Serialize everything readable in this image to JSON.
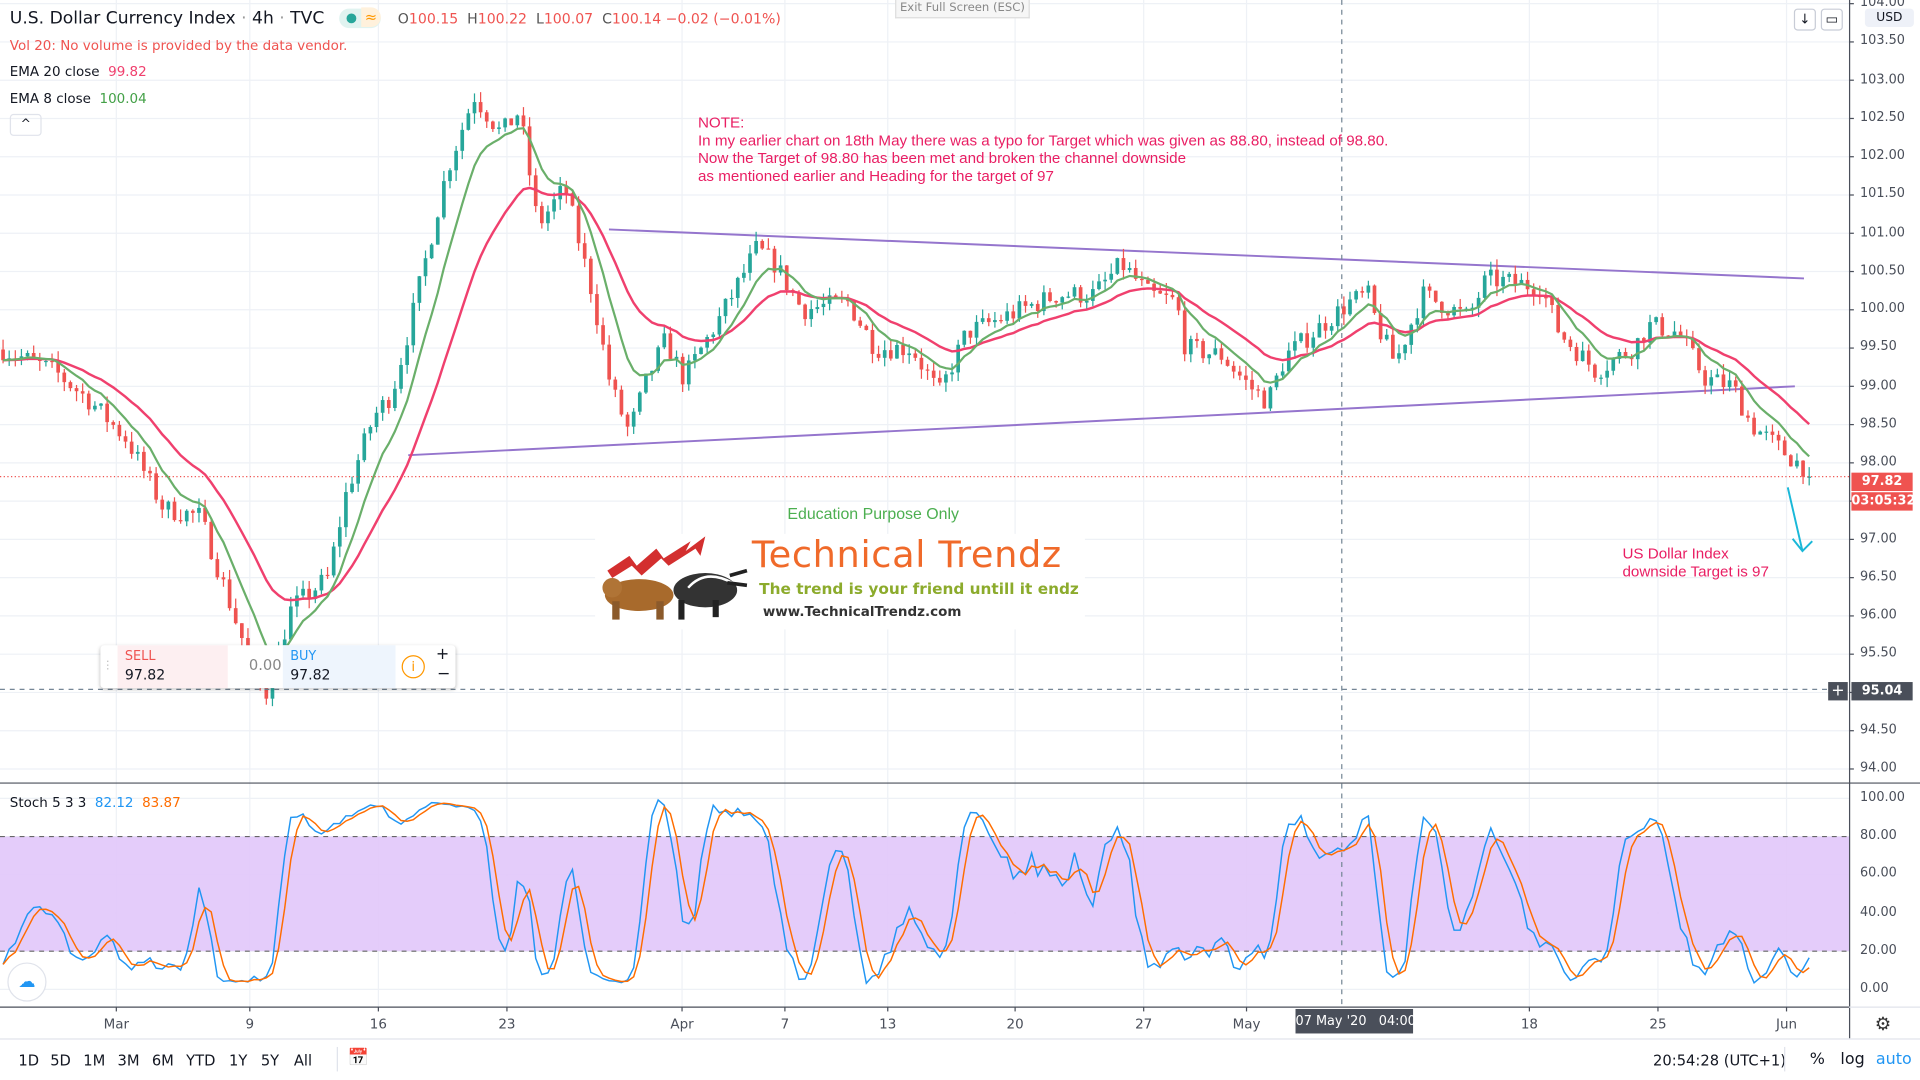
{
  "header": {
    "symbol": "U.S. Dollar Currency Index",
    "interval": "4h",
    "exchange": "TVC",
    "sep": "·",
    "ohlc": {
      "o_label": "O",
      "o": "100.15",
      "h_label": "H",
      "h": "100.22",
      "l_label": "L",
      "l": "100.07",
      "c_label": "C",
      "c": "100.14",
      "change": "−0.02 (−0.01%)"
    },
    "vol_note": "Vol 20: No volume is provided by the data vendor.",
    "ema20_label": "EMA 20 close",
    "ema20_value": "99.82",
    "ema8_label": "EMA 8 close",
    "ema8_value": "100.04",
    "exit_fullscreen": "Exit Full Screen (ESC)",
    "currency": "USD"
  },
  "note": {
    "text": "NOTE:\nIn my earlier chart on 18th May there was a typo for Target which was given as 88.80, instead of 98.80.\nNow the Target of 98.80 has been met and broken the channel downside\nas mentioned earlier and Heading for the target of 97"
  },
  "annotation": {
    "line1": "US Dollar Index",
    "line2": "downside Target is 97"
  },
  "watermark": {
    "education": "Education Purpose Only",
    "logo_title": "Technical Trendz",
    "logo_tagline": "The trend is your friend untill it endz",
    "logo_url": "www.TechnicalTrendz.com"
  },
  "trade": {
    "sell_label": "SELL",
    "sell_price": "97.82",
    "spread": "0.00",
    "buy_label": "BUY",
    "buy_price": "97.82",
    "plus": "+",
    "minus": "−"
  },
  "price_axis": {
    "ticks": [
      "104.00",
      "103.50",
      "103.00",
      "102.50",
      "102.00",
      "101.50",
      "101.00",
      "100.50",
      "100.00",
      "99.50",
      "99.00",
      "98.50",
      "98.00",
      "97.00",
      "96.50",
      "96.00",
      "95.50",
      "94.50",
      "94.00"
    ],
    "last_price": "97.82",
    "countdown": "03:05:32",
    "crosshair_price": "95.04"
  },
  "stoch": {
    "label": "Stoch 5 3 3",
    "k": "82.12",
    "d": "83.87",
    "ticks": [
      "100.00",
      "80.00",
      "60.00",
      "40.00",
      "20.00",
      "0.00"
    ]
  },
  "time_axis": {
    "ticks": [
      "Mar",
      "9",
      "16",
      "23",
      "Apr",
      "7",
      "13",
      "20",
      "27",
      "May",
      "18",
      "25",
      "Jun"
    ],
    "crosshair_label": "07 May '20   04:00"
  },
  "bottom": {
    "ranges": [
      "1D",
      "5D",
      "1M",
      "3M",
      "6M",
      "YTD",
      "1Y",
      "5Y",
      "All"
    ],
    "clock": "20:54:28 (UTC+1)",
    "percent": "%",
    "log": "log",
    "auto": "auto"
  },
  "colors": {
    "up": "#26a69a",
    "down": "#ef5350",
    "ema20": "#f0406e",
    "ema8": "#6aaf6a",
    "trendline": "#9575cd",
    "stoch_k": "#2196f3",
    "stoch_d": "#ff6d00",
    "band": "#e1c7f9",
    "note": "#e91e63",
    "arrow": "#1ab8d8"
  },
  "chart_data": {
    "type": "candlestick",
    "title": "U.S. Dollar Currency Index · 4h · TVC",
    "ylim": [
      94,
      104
    ],
    "grid": true,
    "close_path": [
      [
        "2020-02-23T12:00",
        99.5
      ],
      [
        "2020-02-26T12:00",
        99.2
      ],
      [
        "2020-02-28T12:00",
        98.8
      ],
      [
        "2020-03-01T12:00",
        98.3
      ],
      [
        "2020-03-03T12:00",
        97.4
      ],
      [
        "2020-03-05T12:00",
        97.3
      ],
      [
        "2020-03-07T12:00",
        95.9
      ],
      [
        "2020-03-09T00:00",
        94.9
      ],
      [
        "2020-03-10T12:00",
        96.1
      ],
      [
        "2020-03-12T12:00",
        96.5
      ],
      [
        "2020-03-13T12:00",
        97.6
      ],
      [
        "2020-03-15T00:00",
        98.6
      ],
      [
        "2020-03-16T00:00",
        98.9
      ],
      [
        "2020-03-17T00:00",
        99.8
      ],
      [
        "2020-03-19T00:00",
        101.8
      ],
      [
        "2020-03-20T12:00",
        102.8
      ],
      [
        "2020-03-22T00:00",
        102.3
      ],
      [
        "2020-03-23T00:00",
        102.6
      ],
      [
        "2020-03-24T00:00",
        101.1
      ],
      [
        "2020-03-25T12:00",
        101.6
      ],
      [
        "2020-03-27T00:00",
        100.2
      ],
      [
        "2020-03-28T00:00",
        99.0
      ],
      [
        "2020-03-29T00:00",
        98.4
      ],
      [
        "2020-03-30T00:00",
        99.1
      ],
      [
        "2020-03-31T00:00",
        99.6
      ],
      [
        "2020-04-01T00:00",
        99.1
      ],
      [
        "2020-04-03T00:00",
        99.9
      ],
      [
        "2020-04-05T00:00",
        100.8
      ],
      [
        "2020-04-06T00:00",
        100.6
      ],
      [
        "2020-04-07T12:00",
        100.0
      ],
      [
        "2020-04-10T00:00",
        100.1
      ],
      [
        "2020-04-11T12:00",
        99.5
      ],
      [
        "2020-04-13T12:00",
        99.5
      ],
      [
        "2020-04-15T00:00",
        98.9
      ],
      [
        "2020-04-16T12:00",
        99.7
      ],
      [
        "2020-04-18T12:00",
        99.9
      ],
      [
        "2020-04-21T12:00",
        100.2
      ],
      [
        "2020-04-23T12:00",
        100.2
      ],
      [
        "2020-04-25T00:00",
        100.6
      ],
      [
        "2020-04-26T12:00",
        100.2
      ],
      [
        "2020-04-28T00:00",
        100.1
      ],
      [
        "2020-04-28T12:00",
        99.5
      ],
      [
        "2020-04-30T12:00",
        99.4
      ],
      [
        "2020-05-02T00:00",
        99.0
      ],
      [
        "2020-05-03T00:00",
        98.8
      ],
      [
        "2020-05-04T00:00",
        99.4
      ],
      [
        "2020-05-05T12:00",
        99.7
      ],
      [
        "2020-05-07T12:00",
        100.1
      ],
      [
        "2020-05-08T12:00",
        100.2
      ],
      [
        "2020-05-09T00:00",
        99.8
      ],
      [
        "2020-05-10T00:00",
        99.3
      ],
      [
        "2020-05-11T12:00",
        100.2
      ],
      [
        "2020-05-14T00:00",
        99.9
      ],
      [
        "2020-05-15T00:00",
        100.4
      ],
      [
        "2020-05-18T00:00",
        100.3
      ],
      [
        "2020-05-19T00:00",
        99.7
      ],
      [
        "2020-05-21T00:00",
        99.2
      ],
      [
        "2020-05-23T00:00",
        99.5
      ],
      [
        "2020-05-24T00:00",
        99.8
      ],
      [
        "2020-05-25T12:00",
        99.7
      ],
      [
        "2020-05-27T00:00",
        99.1
      ],
      [
        "2020-05-28T12:00",
        99.0
      ],
      [
        "2020-05-29T12:00",
        98.5
      ],
      [
        "2020-05-31T00:00",
        98.2
      ],
      [
        "2020-06-02T00:00",
        97.82
      ]
    ],
    "trendlines": [
      {
        "from": [
          "2020-03-28T00:00",
          101.05
        ],
        "to": [
          "2020-06-01T12:00",
          100.41
        ]
      },
      {
        "from": [
          "2020-03-17T00:00",
          98.1
        ],
        "to": [
          "2020-06-01T00:00",
          99.0
        ]
      }
    ],
    "indicators": [
      "EMA 20 close",
      "EMA 8 close",
      "Stoch 5 3 3"
    ],
    "stoch_band": [
      20,
      80
    ],
    "crosshair": {
      "time": "2020-05-07T04:00",
      "price": 95.04
    }
  }
}
